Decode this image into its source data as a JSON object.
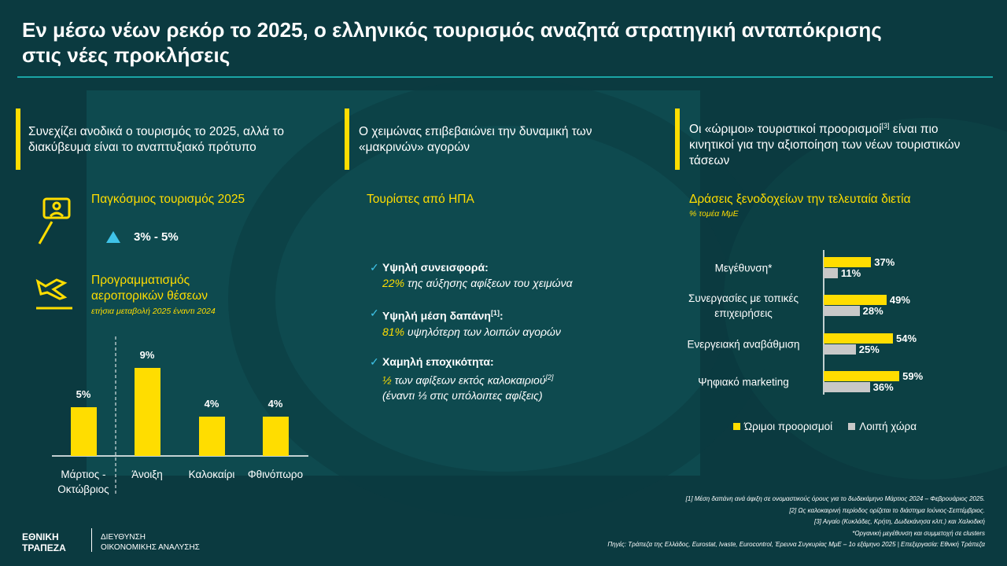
{
  "title": "Εν μέσω νέων ρεκόρ το 2025, ο ελληνικός τουρισμός αναζητά στρατηγική ανταπόκρισης στις νέες προκλήσεις",
  "columns": [
    {
      "heading": "Συνεχίζει ανοδικά ο τουρισμός το 2025, αλλά το διακύβευμα είναι το αναπτυξιακό πρότυπο"
    },
    {
      "heading": "Ο χειμώνας επιβεβαιώνει την δυναμική των «μακρινών» αγορών"
    },
    {
      "heading": "Οι «ώριμοι» τουριστικοί προορισμοί",
      "heading_sup": "[3]",
      "heading_end": " είναι πιο κινητικοί για την αξιοποίηση των νέων τουριστικών τάσεων"
    }
  ],
  "global_tourism": {
    "label": "Παγκόσμιος τουρισμός 2025",
    "range": "3% - 5%"
  },
  "us_tourists": {
    "title": "Τουρίστες από ΗΠΑ",
    "items": [
      {
        "heading": "Υψηλή συνεισφορά:",
        "highlight": "22%",
        "text": " της αύξησης αφίξεων του χειμώνα"
      },
      {
        "heading": "Υψηλή μέση δαπάνη",
        "heading_sup": "[1]",
        "heading_end": ":",
        "highlight": "81%",
        "text": " υψηλότερη των λοιπών αγορών"
      },
      {
        "heading": "Χαμηλή εποχικότητα:",
        "highlight": "½",
        "text": " των αφίξεων εκτός καλοκαιριού",
        "text_sup": "[2]",
        "text_line2": "(έναντι ⅓ στις υπόλοιπες αφίξεις)"
      }
    ]
  },
  "chart_data": [
    {
      "type": "bar",
      "title": "Προγραμματισμός αεροπορικών θέσεων",
      "subtitle": "ετήσια μεταβολή 2025 έναντι 2024",
      "categories": [
        "Μάρτιος - Οκτώβριος",
        "Άνοιξη",
        "Καλοκαίρι",
        "Φθινόπωρο"
      ],
      "values": [
        5,
        9,
        4,
        4
      ],
      "value_labels": [
        "5%",
        "9%",
        "4%",
        "4%"
      ],
      "color": "#ffdd00"
    },
    {
      "type": "hbar",
      "title": "Δράσεις ξενοδοχείων την τελευταία διετία",
      "subtitle": "% τομέα ΜμΕ",
      "categories": [
        "Μεγέθυνση*",
        "Συνεργασίες με τοπικές επιχειρήσεις",
        "Ενεργειακή αναβάθμιση",
        "Ψηφιακό marketing"
      ],
      "series": [
        {
          "name": "Ώριμοι προορισμοί",
          "color": "#ffdd00",
          "values": [
            37,
            49,
            54,
            59
          ],
          "value_labels": [
            "37%",
            "49%",
            "54%",
            "59%"
          ]
        },
        {
          "name": "Λοιπή χώρα",
          "color": "#c8c8c8",
          "values": [
            11,
            28,
            25,
            36
          ],
          "value_labels": [
            "11%",
            "28%",
            "25%",
            "36%"
          ]
        }
      ],
      "legend": "bottom"
    }
  ],
  "footnotes": [
    "[1] Μέση δαπάνη ανά άφιξη σε ονομαστικούς όρους για το δωδεκάμηνο Μάρτιος 2024 – Φεβρουάριος 2025.",
    "[2] Ως καλοκαιρινή περίοδος ορίζεται το διάστημα Ιούνιος-Σεπτέμβριος.",
    "[3] Αιγαίο (Κυκλάδες, Κρήτη, Δωδεκάνησα κλπ.) και Χαλκιδική",
    "*Οργανική μεγέθυνση και συμμετοχή σε clusters",
    "Πηγές: Τράπεζα της Ελλάδος, Eurostat, Ivaste, Eurocontrol, Έρευνα Συγκυρίας ΜμΕ – 1ο εξάμηνο 2025 | Επεξεργασία: Εθνική Τράπεζα"
  ],
  "logo": {
    "line1": "ΕΘΝΙΚΗ",
    "line2": "ΤΡΑΠΕΖΑ",
    "dept1": "ΔΙΕΥΘΥΝΣΗ",
    "dept2": "ΟΙΚΟΝΟΜΙΚΗΣ ΑΝΑΛΥΣΗΣ"
  }
}
